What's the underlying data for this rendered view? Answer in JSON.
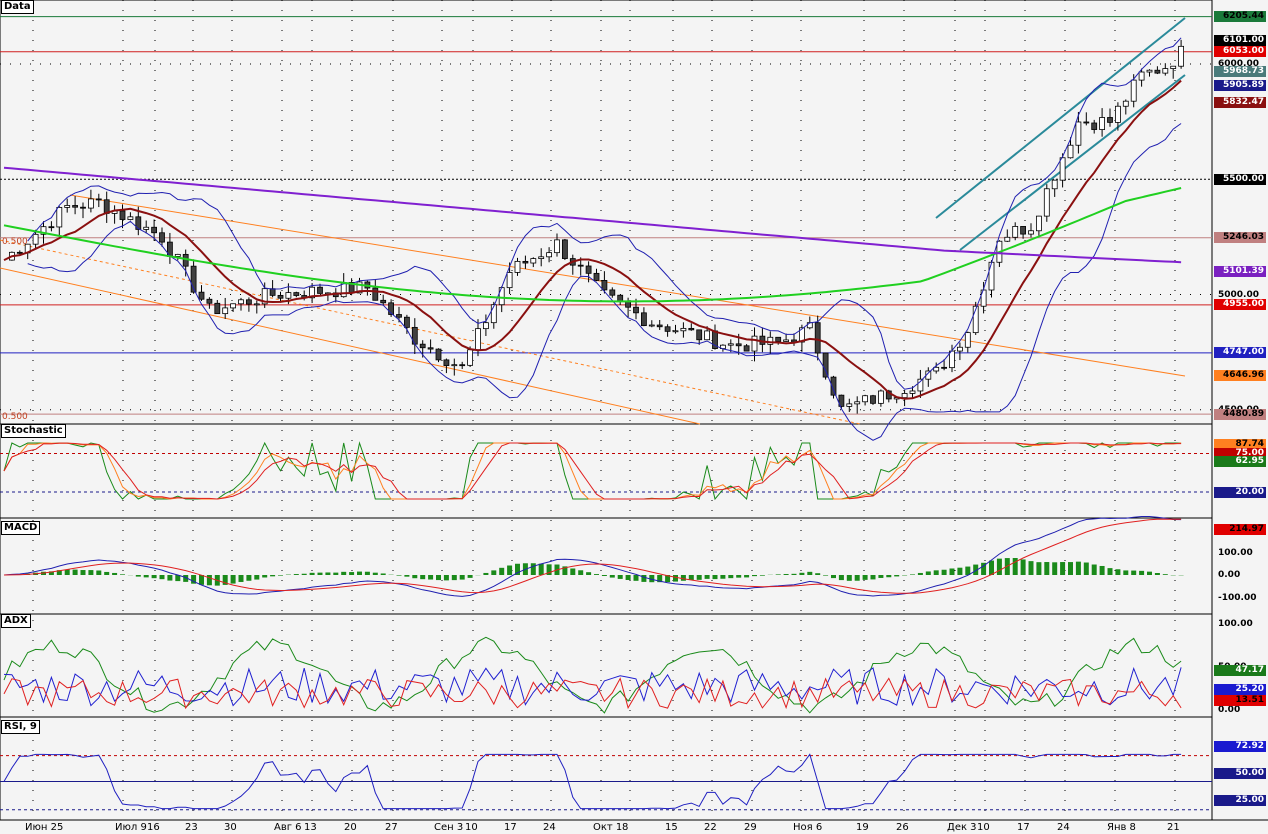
{
  "panels": {
    "price": {
      "label": "Data"
    },
    "stochastic": {
      "label": "Stochastic"
    },
    "macd": {
      "label": "MACD"
    },
    "adx": {
      "label": "ADX"
    },
    "rsi": {
      "label": "RSI, 9"
    }
  },
  "price_tags": [
    {
      "text": "6205.44",
      "value": 6205.44,
      "bg": "#1a7a3a",
      "fg": "#000000"
    },
    {
      "text": "6101.00",
      "value": 6101.0,
      "bg": "#000000",
      "fg": "#ffffff"
    },
    {
      "text": "6053.00",
      "value": 6053.0,
      "bg": "#e00000",
      "fg": "#ffffff"
    },
    {
      "text": "5968.73",
      "value": 5968.73,
      "bg": "#4a7a7a",
      "fg": "#ffffff"
    },
    {
      "text": "5905.89",
      "value": 5905.89,
      "bg": "#1a1a8a",
      "fg": "#ffffff"
    },
    {
      "text": "5832.47",
      "value": 5832.47,
      "bg": "#8a1010",
      "fg": "#ffffff"
    },
    {
      "text": "5500.00",
      "value": 5500.0,
      "bg": "#000000",
      "fg": "#ffffff"
    },
    {
      "text": "5246.03",
      "value": 5246.03,
      "bg": "#c08080",
      "fg": "#000000"
    },
    {
      "text": "5101.39",
      "value": 5101.39,
      "bg": "#7a20c0",
      "fg": "#ffffff"
    },
    {
      "text": "4955.00",
      "value": 4955.0,
      "bg": "#e00000",
      "fg": "#ffffff"
    },
    {
      "text": "4747.00",
      "value": 4747.0,
      "bg": "#2020c0",
      "fg": "#ffffff"
    },
    {
      "text": "4646.96",
      "value": 4646.96,
      "bg": "#ff8020",
      "fg": "#000000"
    },
    {
      "text": "4480.89",
      "value": 4480.89,
      "bg": "#c08080",
      "fg": "#000000"
    }
  ],
  "price_axis": [
    {
      "text": "6000.00",
      "value": 6000
    },
    {
      "text": "5000.00",
      "value": 5000
    },
    {
      "text": "4500.00",
      "value": 4500
    }
  ],
  "stoch_tags": [
    {
      "text": "87.74",
      "value": 87.74,
      "bg": "#ff8020",
      "fg": "#000000"
    },
    {
      "text": "75.00",
      "value": 75.0,
      "bg": "#c00000",
      "fg": "#ffffff"
    },
    {
      "text": "62.95",
      "value": 62.95,
      "bg": "#1a7a1a",
      "fg": "#ffffff"
    },
    {
      "text": "20.00",
      "value": 20.0,
      "bg": "#1a1a8a",
      "fg": "#ffffff"
    }
  ],
  "macd_tags": [
    {
      "text": "214.97",
      "value": 214.97,
      "bg": "#e00000",
      "fg": "#000000"
    }
  ],
  "macd_axis": [
    {
      "text": "100.00",
      "value": 100
    },
    {
      "text": "0.00",
      "value": 0
    },
    {
      "text": "-100.00",
      "value": -100
    }
  ],
  "adx_tags": [
    {
      "text": "47.17",
      "value": 47.17,
      "bg": "#1a7a1a",
      "fg": "#ffffff"
    },
    {
      "text": "25.20",
      "value": 25.2,
      "bg": "#1a1ad0",
      "fg": "#ffffff"
    },
    {
      "text": "13.51",
      "value": 13.51,
      "bg": "#e00000",
      "fg": "#000000"
    }
  ],
  "adx_axis": [
    {
      "text": "100.00",
      "value": 100
    },
    {
      "text": "50.00",
      "value": 50
    },
    {
      "text": "0.00",
      "value": 0
    }
  ],
  "rsi_tags": [
    {
      "text": "72.92",
      "value": 72.92,
      "bg": "#1a1ad0",
      "fg": "#ffffff"
    },
    {
      "text": "50.00",
      "value": 50.0,
      "bg": "#1a1a8a",
      "fg": "#ffffff"
    },
    {
      "text": "25.00",
      "value": 25.0,
      "bg": "#1a1a8a",
      "fg": "#ffffff"
    }
  ],
  "fib_labels": [
    "0.500",
    "0.500"
  ],
  "x_labels": [
    "Июн 25",
    "Июл 9",
    "16",
    "23",
    "30",
    "Авг 6",
    "13",
    "20",
    "27",
    "Сен 3",
    "10",
    "17",
    "24",
    "Окт 1",
    "8",
    "15",
    "22",
    "29",
    "Ноя 6",
    "19",
    "26",
    "Дек 3",
    "10",
    "17",
    "24",
    "Янв 8",
    "21"
  ],
  "colors": {
    "background": "#f4f4f4",
    "candle_up": "#ffffff",
    "candle_down": "#404040",
    "ma_short": "#8a1010",
    "ma_mid": "#20d020",
    "ma_long": "#8020d0",
    "bollinger": "#2020b0",
    "channel": "#2a8a9a",
    "trend_orange": "#ff8020"
  }
}
